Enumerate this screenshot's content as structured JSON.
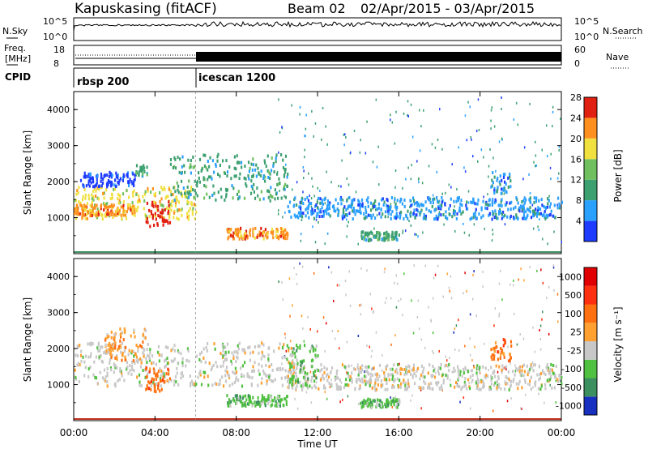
{
  "header": {
    "title": "Kapuskasing (fitACF)",
    "beam": "Beam 02",
    "daterange": "02/Apr/2015 - 03/Apr/2015"
  },
  "top_panels": {
    "nsky_label": "N.Sky",
    "nsky_ticks": [
      "10^5",
      "10^0"
    ],
    "nsearch_label": "N.Search",
    "nsearch_ticks": [
      "10^5",
      "10^0"
    ],
    "freq_label": "Freq.",
    "freq_unit": "[MHz]",
    "freq_ticks": [
      "18",
      "8"
    ],
    "nave_label": "Nave",
    "nave_ticks": [
      "60",
      "0"
    ],
    "cpid_label": "CPID",
    "cpid_modes": [
      {
        "name": "rbsp 200",
        "start_h": 0
      },
      {
        "name": "icescan 1200",
        "start_h": 6
      }
    ]
  },
  "chart_data": [
    {
      "type": "heatmap",
      "name": "power",
      "ylabel": "Slant Range [km]",
      "ylim": [
        0,
        4500
      ],
      "yticks": [
        "1000",
        "2000",
        "3000",
        "4000"
      ],
      "xlim_hours": [
        0,
        24
      ],
      "colorbar_label": "Power [dB]",
      "colorbar_ticks": [
        "4",
        "8",
        "12",
        "16",
        "20",
        "24",
        "28"
      ],
      "colorbar_colors": [
        "#1e3cff",
        "#2aa0ff",
        "#3ca070",
        "#70c060",
        "#f0e040",
        "#ff9020",
        "#e02010"
      ],
      "regions": [
        {
          "t0": 0.0,
          "t1": 6.0,
          "r0": 1000,
          "r1": 1900,
          "level": 4
        },
        {
          "t0": 0.0,
          "t1": 3.0,
          "r0": 1100,
          "r1": 1400,
          "level": 5
        },
        {
          "t0": 3.5,
          "t1": 4.7,
          "r0": 800,
          "r1": 1500,
          "level": 6
        },
        {
          "t0": 3.0,
          "t1": 3.6,
          "r0": 2200,
          "r1": 2500,
          "level": 2
        },
        {
          "t0": 0.3,
          "t1": 3.0,
          "r0": 1900,
          "r1": 2300,
          "level": 0
        },
        {
          "t0": 4.7,
          "t1": 10.5,
          "r0": 1500,
          "r1": 2800,
          "level": 2
        },
        {
          "t0": 7.5,
          "t1": 10.5,
          "r0": 450,
          "r1": 750,
          "level": 5
        },
        {
          "t0": 10.5,
          "t1": 24.0,
          "r0": 1000,
          "r1": 1600,
          "level": 1
        },
        {
          "t0": 14.0,
          "t1": 16.0,
          "r0": 400,
          "r1": 650,
          "level": 2
        },
        {
          "t0": 20.5,
          "t1": 21.5,
          "r0": 1700,
          "r1": 2300,
          "level": 1
        }
      ]
    },
    {
      "type": "heatmap",
      "name": "velocity",
      "ylabel": "Slant Range [km]",
      "ylim": [
        0,
        4500
      ],
      "yticks": [
        "1000",
        "2000",
        "3000",
        "4000"
      ],
      "xlabel": "Time UT",
      "xticks": [
        "00:00",
        "04:00",
        "08:00",
        "12:00",
        "16:00",
        "20:00",
        "00:00"
      ],
      "xlim_hours": [
        0,
        24
      ],
      "colorbar_label": "Velocity [m s⁻¹]",
      "colorbar_ticks": [
        "1000",
        "500",
        "100",
        "25",
        "-25",
        "-100",
        "-500",
        "-1000"
      ],
      "colorbar_colors": [
        "#1830c0",
        "#3c9060",
        "#50c040",
        "#c8c8c8",
        "#ffa030",
        "#ff7010",
        "#ff3010",
        "#e00000"
      ],
      "regions": [
        {
          "t0": 0.0,
          "t1": 11.0,
          "r0": 1000,
          "r1": 2200,
          "level": 3
        },
        {
          "t0": 3.5,
          "t1": 4.7,
          "r0": 800,
          "r1": 1500,
          "level": 5
        },
        {
          "t0": 1.5,
          "t1": 3.5,
          "r0": 1700,
          "r1": 2600,
          "level": 4
        },
        {
          "t0": 7.5,
          "t1": 10.5,
          "r0": 450,
          "r1": 750,
          "level": 2
        },
        {
          "t0": 10.5,
          "t1": 24.0,
          "r0": 900,
          "r1": 1600,
          "level": 3
        },
        {
          "t0": 10.5,
          "t1": 12.0,
          "r0": 1000,
          "r1": 2200,
          "level": 2
        },
        {
          "t0": 14.0,
          "t1": 16.0,
          "r0": 400,
          "r1": 650,
          "level": 2
        },
        {
          "t0": 20.5,
          "t1": 21.5,
          "r0": 1700,
          "r1": 2300,
          "level": 5
        }
      ]
    }
  ]
}
